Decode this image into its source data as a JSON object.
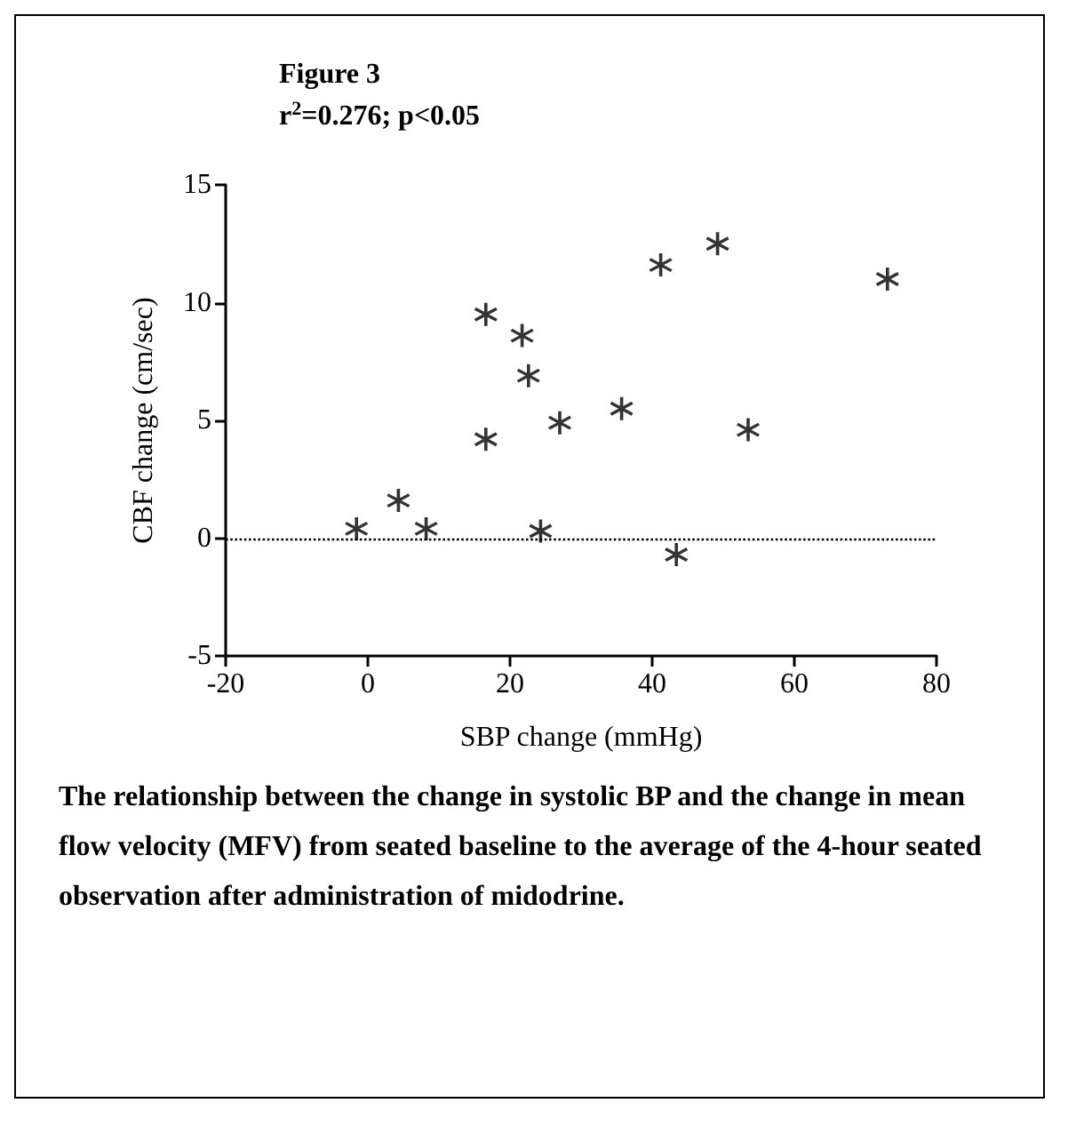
{
  "chart_data": {
    "type": "scatter",
    "title": "Figure 3",
    "subtitle": "r$^{2}$=0.276; p<0.05",
    "xlabel": "SBP change (mmHg)",
    "ylabel": "CBF change (cm/sec)",
    "x": [
      -1.6,
      4.3,
      8.2,
      16.6,
      16.6,
      21.7,
      22.6,
      24.3,
      27.0,
      35.7,
      41.2,
      43.4,
      49.2,
      53.5,
      73.1
    ],
    "values": [
      0.4,
      1.6,
      0.4,
      9.5,
      4.2,
      8.6,
      6.9,
      0.3,
      4.9,
      5.5,
      11.6,
      -0.7,
      12.5,
      4.6,
      11.0
    ],
    "color": "#000000",
    "marker": "cross",
    "xlim": [
      -20,
      80
    ],
    "xticks": [
      -20,
      0,
      20,
      40,
      60,
      80
    ],
    "ylim": [
      -5,
      15
    ],
    "yticks": [
      -5,
      0,
      5,
      10,
      15
    ],
    "ref_lines": [
      {
        "axis": "y",
        "value": 0,
        "line_style": "dotted",
        "color": "#000000"
      }
    ],
    "annotations": [
      "The relationship between the change in systolic BP and the change in mean flow velocity (MFV) from seated baseline to the average of the 4-hour seated observation after administration of midodrine."
    ]
  }
}
